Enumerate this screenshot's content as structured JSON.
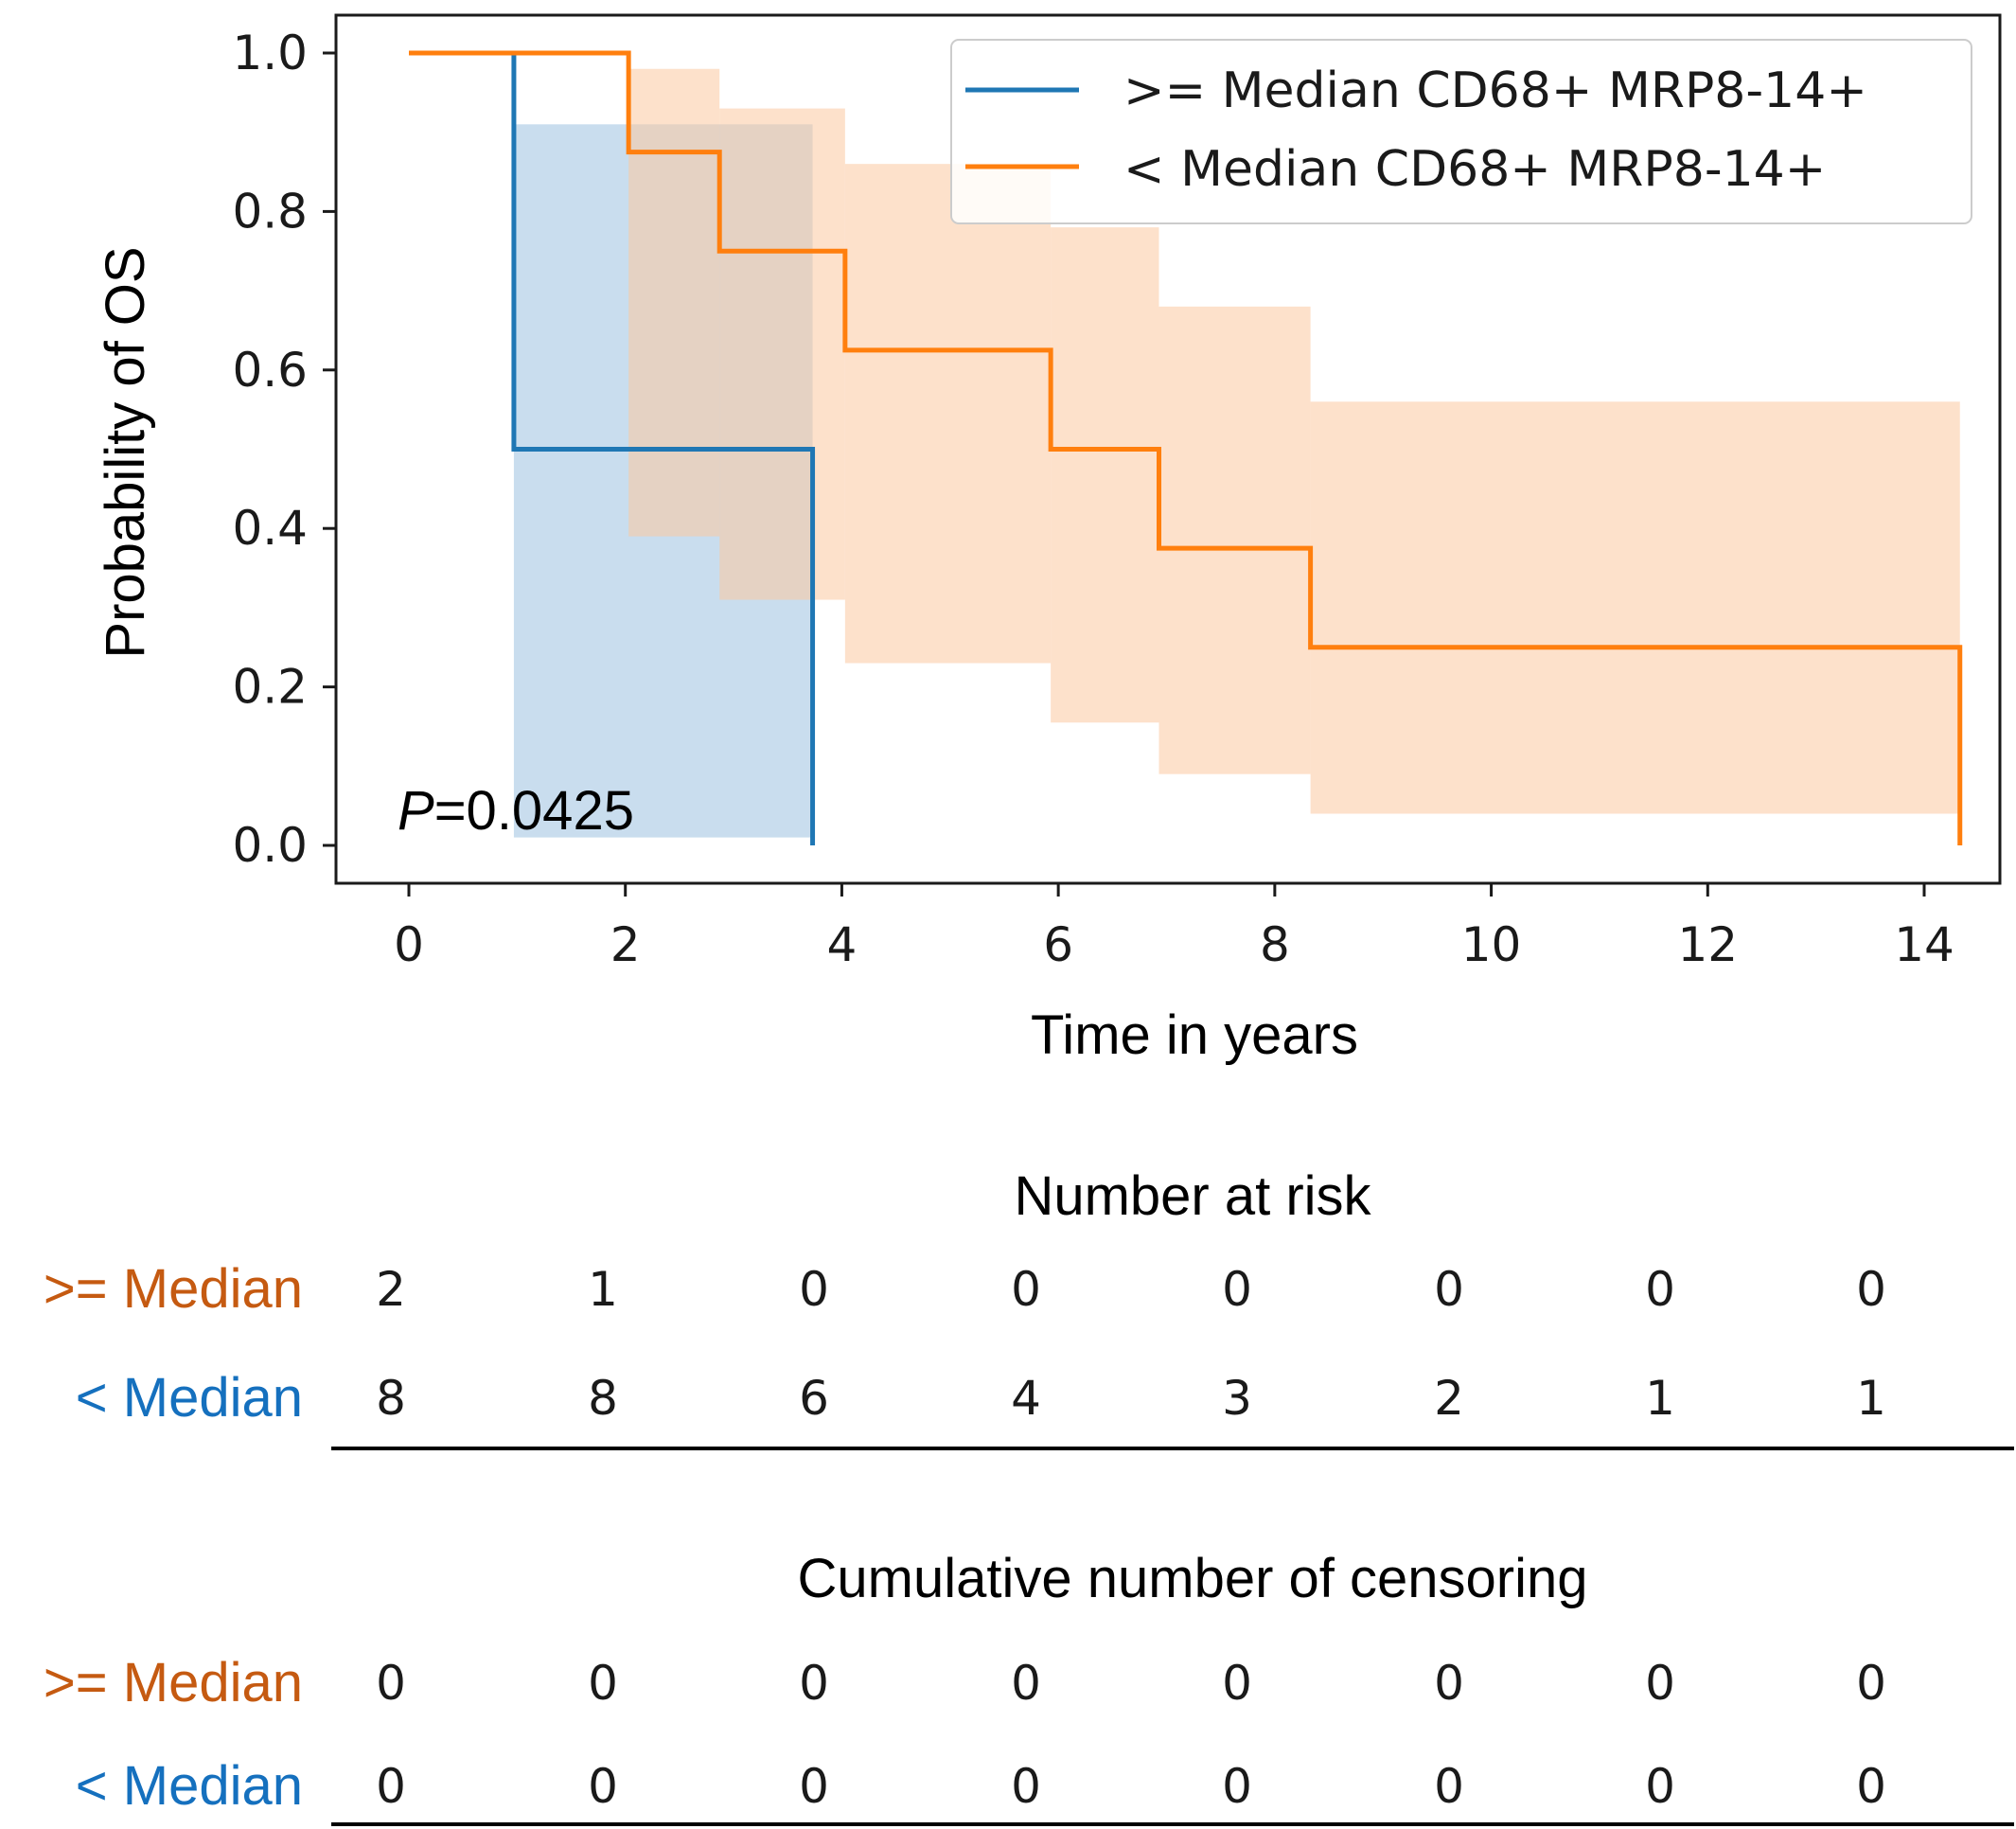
{
  "chart_data": {
    "type": "line",
    "subtype": "kaplan-meier",
    "xlabel": "Time in years",
    "ylabel": "Probability of OS",
    "xlim": [
      -0.7,
      15.0
    ],
    "ylim": [
      -0.05,
      1.05
    ],
    "xticks": [
      0,
      2,
      4,
      6,
      8,
      10,
      12,
      14
    ],
    "yticks": [
      0.0,
      0.2,
      0.4,
      0.6,
      0.8,
      1.0
    ],
    "ytick_labels": [
      "0.0",
      "0.2",
      "0.4",
      "0.6",
      "0.8",
      "1.0"
    ],
    "legend_position": "top-right",
    "annotation": {
      "italic": "P",
      "rest": "=0.0425"
    },
    "series": [
      {
        "name": ">= Median CD68+ MRP8-14+",
        "color": "#1f77b4",
        "fill_color": "#a8c8e4",
        "step_x": [
          0,
          0.97,
          3.73
        ],
        "step_y": [
          1.0,
          0.5,
          0.0
        ],
        "ci": [
          {
            "x0": 0.97,
            "x1": 3.73,
            "lo": 0.01,
            "hi": 0.91
          }
        ]
      },
      {
        "name": "< Median CD68+ MRP8-14+",
        "color": "#ff7f0e",
        "fill_color": "#fcc9a0",
        "step_x": [
          0,
          2.03,
          2.87,
          4.03,
          5.93,
          6.93,
          8.33,
          14.33
        ],
        "step_y": [
          1.0,
          0.875,
          0.75,
          0.625,
          0.5,
          0.375,
          0.25,
          0.0
        ],
        "ci": [
          {
            "x0": 2.03,
            "x1": 2.87,
            "lo": 0.39,
            "hi": 0.98
          },
          {
            "x0": 2.87,
            "x1": 4.03,
            "lo": 0.31,
            "hi": 0.93
          },
          {
            "x0": 4.03,
            "x1": 5.93,
            "lo": 0.23,
            "hi": 0.86
          },
          {
            "x0": 5.93,
            "x1": 6.93,
            "lo": 0.155,
            "hi": 0.78
          },
          {
            "x0": 6.93,
            "x1": 8.33,
            "lo": 0.09,
            "hi": 0.68
          },
          {
            "x0": 8.33,
            "x1": 14.33,
            "lo": 0.04,
            "hi": 0.56
          }
        ]
      }
    ]
  },
  "tables": [
    {
      "title": "Number at risk",
      "rows": [
        {
          "label": ">= Median",
          "color": "#c55a11",
          "values": [
            "2",
            "1",
            "0",
            "0",
            "0",
            "0",
            "0",
            "0"
          ]
        },
        {
          "label": "< Median",
          "color": "#1570be",
          "values": [
            "8",
            "8",
            "6",
            "4",
            "3",
            "2",
            "1",
            "1"
          ]
        }
      ]
    },
    {
      "title": "Cumulative number of censoring",
      "rows": [
        {
          "label": ">= Median",
          "color": "#c55a11",
          "values": [
            "0",
            "0",
            "0",
            "0",
            "0",
            "0",
            "0",
            "0"
          ]
        },
        {
          "label": "< Median",
          "color": "#1570be",
          "values": [
            "0",
            "0",
            "0",
            "0",
            "0",
            "0",
            "0",
            "0"
          ]
        }
      ]
    }
  ]
}
